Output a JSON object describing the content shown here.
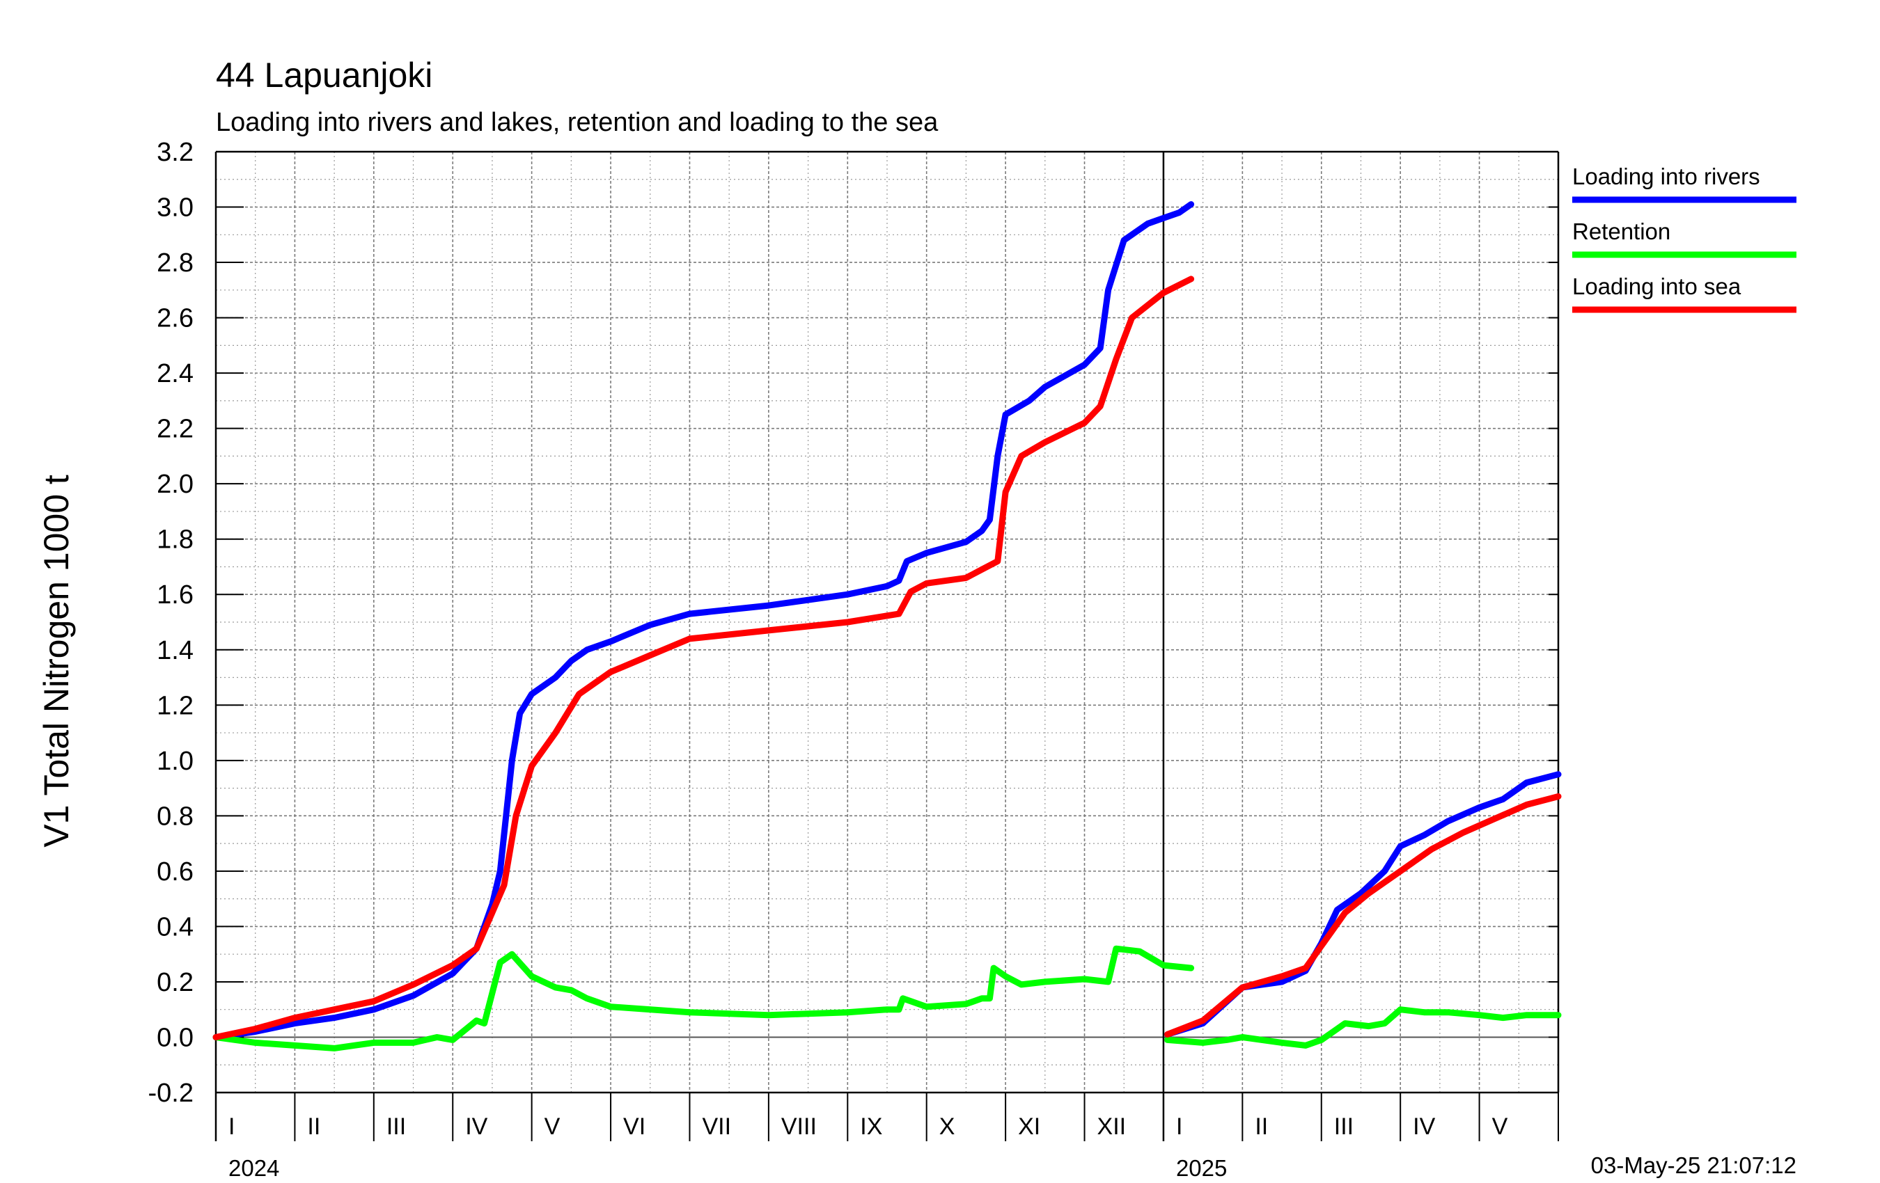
{
  "chart_data": {
    "type": "line",
    "title": "44 Lapuanjoki",
    "subtitle": "Loading into rivers and lakes, retention and loading to the sea",
    "ylabel": "V1 Total Nitrogen 1000 t",
    "ylim": [
      -0.2,
      3.2
    ],
    "yticks": [
      "3.2",
      "3.0",
      "2.8",
      "2.6",
      "2.4",
      "2.2",
      "2.0",
      "1.8",
      "1.6",
      "1.4",
      "1.2",
      "1.0",
      "0.8",
      "0.6",
      "0.4",
      "0.2",
      "0.0",
      "-0.2"
    ],
    "x_unit": "month (0 = 1 Jan 2024)",
    "xlim": [
      0,
      17
    ],
    "months": [
      "I",
      "II",
      "III",
      "IV",
      "V",
      "VI",
      "VII",
      "VIII",
      "IX",
      "X",
      "XI",
      "XII",
      "I",
      "II",
      "III",
      "IV",
      "V"
    ],
    "years": [
      {
        "label": "2024",
        "month": 0
      },
      {
        "label": "2025",
        "month": 12
      }
    ],
    "grid": true,
    "legend_position": "right",
    "timestamp": "03-May-25 21:07:12",
    "series": [
      {
        "name": "Loading into rivers",
        "color": "#0000ff",
        "segments": [
          [
            [
              0,
              0.0
            ],
            [
              0.5,
              0.02
            ],
            [
              1,
              0.05
            ],
            [
              1.5,
              0.07
            ],
            [
              2,
              0.1
            ],
            [
              2.5,
              0.15
            ],
            [
              3,
              0.23
            ],
            [
              3.3,
              0.32
            ],
            [
              3.5,
              0.48
            ],
            [
              3.6,
              0.6
            ],
            [
              3.75,
              1.0
            ],
            [
              3.85,
              1.17
            ],
            [
              4,
              1.24
            ],
            [
              4.3,
              1.3
            ],
            [
              4.5,
              1.36
            ],
            [
              4.7,
              1.4
            ],
            [
              5,
              1.43
            ],
            [
              5.5,
              1.49
            ],
            [
              6,
              1.53
            ],
            [
              7,
              1.56
            ],
            [
              8,
              1.6
            ],
            [
              8.5,
              1.63
            ],
            [
              8.65,
              1.65
            ],
            [
              8.75,
              1.72
            ],
            [
              9,
              1.75
            ],
            [
              9.5,
              1.79
            ],
            [
              9.7,
              1.83
            ],
            [
              9.8,
              1.87
            ],
            [
              9.9,
              2.1
            ],
            [
              10,
              2.25
            ],
            [
              10.3,
              2.3
            ],
            [
              10.5,
              2.35
            ],
            [
              11,
              2.43
            ],
            [
              11.2,
              2.49
            ],
            [
              11.3,
              2.7
            ],
            [
              11.5,
              2.88
            ],
            [
              11.8,
              2.94
            ],
            [
              12,
              2.96
            ],
            [
              12.2,
              2.98
            ],
            [
              12.35,
              3.01
            ]
          ],
          [
            [
              12.05,
              0.01
            ],
            [
              12.5,
              0.05
            ],
            [
              13,
              0.18
            ],
            [
              13.5,
              0.2
            ],
            [
              13.8,
              0.24
            ],
            [
              14,
              0.34
            ],
            [
              14.2,
              0.46
            ],
            [
              14.5,
              0.52
            ],
            [
              14.8,
              0.6
            ],
            [
              15,
              0.69
            ],
            [
              15.3,
              0.73
            ],
            [
              15.6,
              0.78
            ],
            [
              16,
              0.83
            ],
            [
              16.3,
              0.86
            ],
            [
              16.6,
              0.92
            ],
            [
              17,
              0.95
            ]
          ]
        ]
      },
      {
        "name": "Retention",
        "color": "#00ff00",
        "segments": [
          [
            [
              0,
              0.0
            ],
            [
              0.5,
              -0.02
            ],
            [
              1,
              -0.03
            ],
            [
              1.5,
              -0.04
            ],
            [
              2,
              -0.02
            ],
            [
              2.5,
              -0.02
            ],
            [
              2.8,
              0.0
            ],
            [
              3,
              -0.01
            ],
            [
              3.3,
              0.06
            ],
            [
              3.4,
              0.05
            ],
            [
              3.6,
              0.27
            ],
            [
              3.75,
              0.3
            ],
            [
              4,
              0.22
            ],
            [
              4.3,
              0.18
            ],
            [
              4.5,
              0.17
            ],
            [
              4.7,
              0.14
            ],
            [
              5,
              0.11
            ],
            [
              6,
              0.09
            ],
            [
              7,
              0.08
            ],
            [
              8,
              0.09
            ],
            [
              8.5,
              0.1
            ],
            [
              8.65,
              0.1
            ],
            [
              8.7,
              0.14
            ],
            [
              9,
              0.11
            ],
            [
              9.5,
              0.12
            ],
            [
              9.7,
              0.14
            ],
            [
              9.8,
              0.14
            ],
            [
              9.85,
              0.25
            ],
            [
              10,
              0.22
            ],
            [
              10.2,
              0.19
            ],
            [
              10.5,
              0.2
            ],
            [
              11,
              0.21
            ],
            [
              11.3,
              0.2
            ],
            [
              11.4,
              0.32
            ],
            [
              11.7,
              0.31
            ],
            [
              12,
              0.26
            ],
            [
              12.35,
              0.25
            ]
          ],
          [
            [
              12.05,
              -0.01
            ],
            [
              12.5,
              -0.02
            ],
            [
              12.8,
              -0.01
            ],
            [
              13,
              0.0
            ],
            [
              13.5,
              -0.02
            ],
            [
              13.8,
              -0.03
            ],
            [
              14,
              -0.01
            ],
            [
              14.3,
              0.05
            ],
            [
              14.6,
              0.04
            ],
            [
              14.8,
              0.05
            ],
            [
              15,
              0.1
            ],
            [
              15.3,
              0.09
            ],
            [
              15.6,
              0.09
            ],
            [
              16,
              0.08
            ],
            [
              16.3,
              0.07
            ],
            [
              16.6,
              0.08
            ],
            [
              17,
              0.08
            ]
          ]
        ]
      },
      {
        "name": "Loading into sea",
        "color": "#ff0000",
        "segments": [
          [
            [
              0,
              0.0
            ],
            [
              0.5,
              0.03
            ],
            [
              1,
              0.07
            ],
            [
              1.5,
              0.1
            ],
            [
              2,
              0.13
            ],
            [
              2.5,
              0.19
            ],
            [
              3,
              0.26
            ],
            [
              3.3,
              0.32
            ],
            [
              3.5,
              0.45
            ],
            [
              3.65,
              0.55
            ],
            [
              3.8,
              0.8
            ],
            [
              4,
              0.98
            ],
            [
              4.3,
              1.1
            ],
            [
              4.6,
              1.24
            ],
            [
              5,
              1.32
            ],
            [
              5.5,
              1.38
            ],
            [
              6,
              1.44
            ],
            [
              7,
              1.47
            ],
            [
              8,
              1.5
            ],
            [
              8.65,
              1.53
            ],
            [
              8.8,
              1.61
            ],
            [
              9,
              1.64
            ],
            [
              9.5,
              1.66
            ],
            [
              9.7,
              1.69
            ],
            [
              9.9,
              1.72
            ],
            [
              10,
              1.97
            ],
            [
              10.2,
              2.1
            ],
            [
              10.5,
              2.15
            ],
            [
              11,
              2.22
            ],
            [
              11.2,
              2.28
            ],
            [
              11.4,
              2.45
            ],
            [
              11.6,
              2.6
            ],
            [
              12,
              2.69
            ],
            [
              12.35,
              2.74
            ]
          ],
          [
            [
              12.05,
              0.01
            ],
            [
              12.5,
              0.06
            ],
            [
              13,
              0.18
            ],
            [
              13.5,
              0.22
            ],
            [
              13.8,
              0.25
            ],
            [
              14,
              0.33
            ],
            [
              14.3,
              0.45
            ],
            [
              14.6,
              0.52
            ],
            [
              15,
              0.6
            ],
            [
              15.4,
              0.68
            ],
            [
              15.8,
              0.74
            ],
            [
              16.2,
              0.79
            ],
            [
              16.6,
              0.84
            ],
            [
              17,
              0.87
            ]
          ]
        ]
      }
    ]
  }
}
